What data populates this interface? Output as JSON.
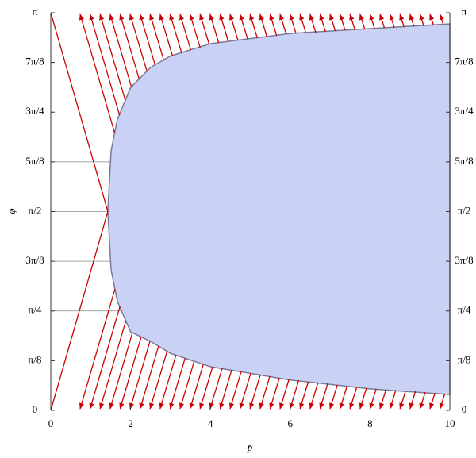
{
  "chart_data": {
    "type": "area",
    "x_label": "p̄",
    "y_label": "φ",
    "xlim": [
      0,
      10
    ],
    "ylim": [
      0,
      3.1416
    ],
    "xticks": [
      0,
      2,
      4,
      6,
      8,
      10
    ],
    "yticks": [
      0,
      {
        "value": 0.3927,
        "label": "π/8"
      },
      {
        "value": 0.7854,
        "label": "π/4"
      },
      {
        "value": 1.1781,
        "label": "3π/8"
      },
      {
        "value": 1.5708,
        "label": "π/2"
      },
      {
        "value": 1.9635,
        "label": "5π/8"
      },
      {
        "value": 2.3562,
        "label": "3π/4"
      },
      {
        "value": 2.7489,
        "label": "7π/8"
      },
      {
        "value": 3.1416,
        "label": "π"
      }
    ],
    "grid_y": [
      0.7854,
      1.1781,
      1.5708,
      1.9635
    ],
    "series": [
      {
        "color": "#c9d1f5",
        "x": [
          10,
          8,
          6,
          4,
          3,
          2.5,
          2,
          1.67,
          1.51,
          1.43,
          1.51,
          1.67,
          2,
          2.5,
          3,
          4,
          6,
          8,
          10
        ],
        "y": [
          0.125,
          0.17,
          0.24,
          0.345,
          0.45,
          0.545,
          0.62,
          0.86,
          1.11,
          1.571,
          2.05,
          2.3,
          2.55,
          2.71,
          2.8,
          2.897,
          2.978,
          3.016,
          3.053
        ]
      }
    ]
  }
}
